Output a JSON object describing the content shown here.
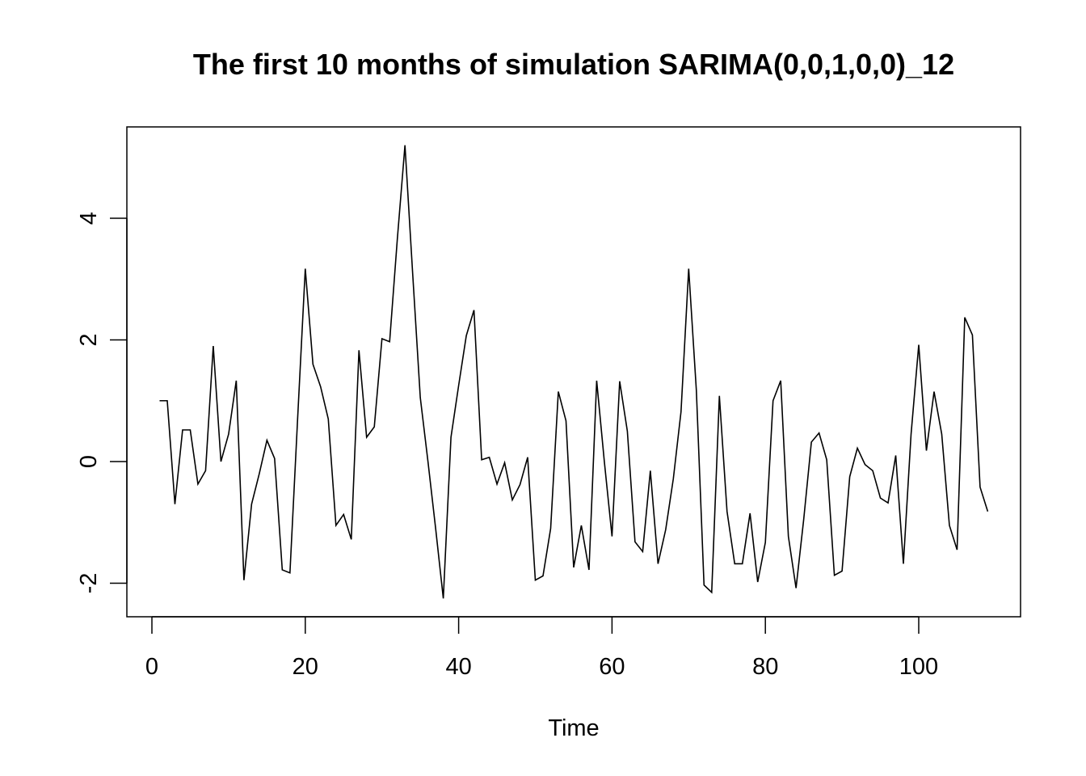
{
  "chart_data": {
    "type": "line",
    "title": "The first 10 months of simulation SARIMA(0,0,1,0,0)_12",
    "xlabel": "Time",
    "ylabel": "",
    "xlim": [
      0,
      110
    ],
    "ylim": [
      -2.5,
      5.5
    ],
    "xticks": [
      0,
      20,
      40,
      60,
      80,
      100
    ],
    "yticks": [
      -2,
      0,
      2,
      4
    ],
    "xtick_labels": [
      "0",
      "20",
      "40",
      "60",
      "80",
      "100"
    ],
    "ytick_labels": [
      "-2",
      "0",
      "2",
      "4"
    ],
    "grid": false,
    "legend": "none",
    "color": "#000000",
    "x": [
      1,
      2,
      3,
      4,
      5,
      6,
      7,
      8,
      9,
      10,
      11,
      12,
      13,
      14,
      15,
      16,
      17,
      18,
      19,
      20,
      21,
      22,
      23,
      24,
      25,
      26,
      27,
      28,
      29,
      30,
      31,
      32,
      33,
      34,
      35,
      36,
      37,
      38,
      39,
      40,
      41,
      42,
      43,
      44,
      45,
      46,
      47,
      48,
      49,
      50,
      51,
      52,
      53,
      54,
      55,
      56,
      57,
      58,
      59,
      60,
      61,
      62,
      63,
      64,
      65,
      66,
      67,
      68,
      69,
      70,
      71,
      72,
      73,
      74,
      75,
      76,
      77,
      78,
      79,
      80,
      81,
      82,
      83,
      84,
      85,
      86,
      87,
      88,
      89,
      90,
      91,
      92,
      93,
      94,
      95,
      96,
      97,
      98,
      99,
      100,
      101,
      102,
      103,
      104,
      105,
      106,
      107,
      108,
      109
    ],
    "values": [
      1.0,
      1.0,
      -0.7,
      0.52,
      0.52,
      -0.37,
      -0.15,
      1.9,
      0.0,
      0.45,
      1.33,
      -1.95,
      -0.7,
      -0.2,
      0.35,
      0.05,
      -1.78,
      -1.83,
      0.7,
      3.17,
      1.6,
      1.23,
      0.7,
      -1.05,
      -0.87,
      -1.28,
      1.83,
      0.4,
      0.57,
      2.02,
      1.97,
      3.65,
      5.2,
      3.1,
      1.05,
      0.0,
      -1.1,
      -2.25,
      0.4,
      1.25,
      2.07,
      2.49,
      0.03,
      0.07,
      -0.37,
      -0.02,
      -0.63,
      -0.38,
      0.07,
      -1.95,
      -1.88,
      -1.1,
      1.15,
      0.67,
      -1.74,
      -1.05,
      -1.78,
      1.33,
      0.0,
      -1.23,
      1.32,
      0.5,
      -1.32,
      -1.48,
      -0.15,
      -1.68,
      -1.12,
      -0.28,
      0.82,
      3.17,
      1.17,
      -2.03,
      -2.15,
      1.08,
      -0.82,
      -1.68,
      -1.68,
      -0.85,
      -1.98,
      -1.33,
      1.0,
      1.33,
      -1.23,
      -2.08,
      -0.95,
      0.32,
      0.47,
      0.03,
      -1.87,
      -1.8,
      -0.25,
      0.22,
      -0.05,
      -0.15,
      -0.6,
      -0.68,
      0.1,
      -1.68,
      0.45,
      1.92,
      0.18,
      1.15,
      0.45,
      -1.05,
      -1.45,
      2.37,
      2.08,
      -0.42,
      -0.82
    ]
  }
}
